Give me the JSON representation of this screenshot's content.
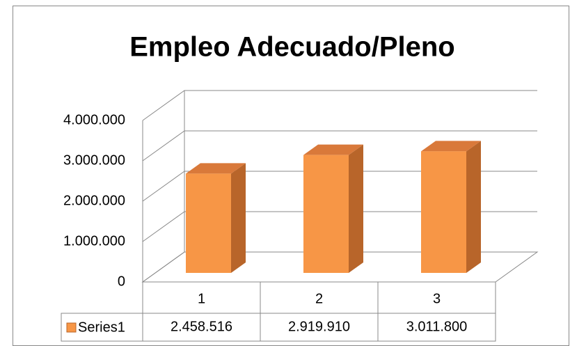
{
  "chart_data": {
    "type": "bar3d",
    "title": "Empleo Adecuado/Pleno",
    "categories": [
      "1",
      "2",
      "3"
    ],
    "series": [
      {
        "name": "Series1",
        "color": "#f79646",
        "values": [
          2458516,
          2919910,
          3011800
        ],
        "value_labels": [
          "2.458.516",
          "2.919.910",
          "3.011.800"
        ]
      }
    ],
    "ylim": [
      0,
      4000000
    ],
    "yticks": [
      0,
      {
        "value": 1000000,
        "label": "1.000.000"
      },
      {
        "value": 2000000,
        "label": "2.000.000"
      },
      {
        "value": 3000000,
        "label": "3.000.000"
      },
      {
        "value": 4000000,
        "label": "4.000.000"
      }
    ],
    "grid": true,
    "data_table": true
  }
}
